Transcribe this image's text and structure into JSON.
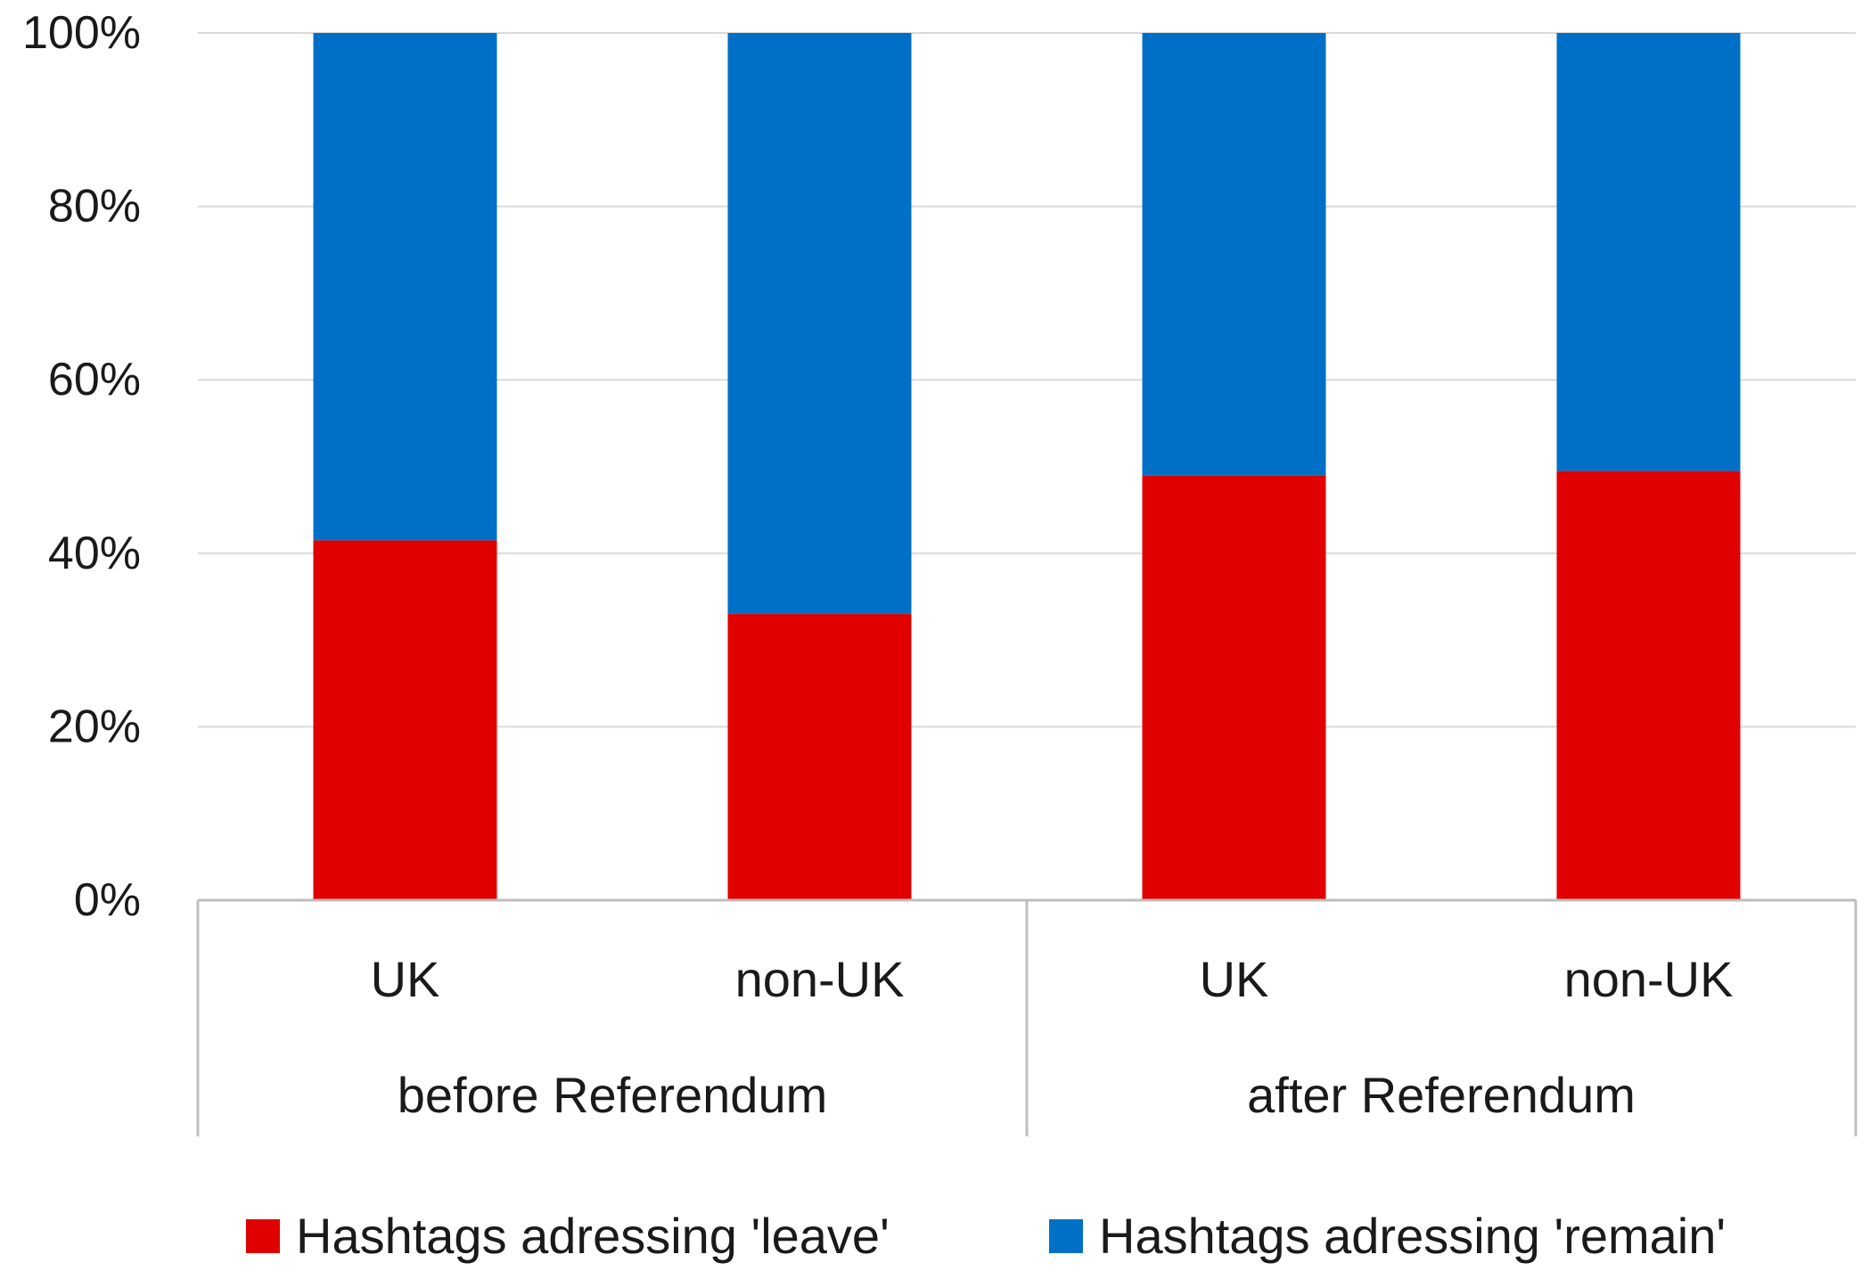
{
  "chart_data": {
    "type": "bar",
    "stacked": true,
    "percent_stacked": true,
    "groups": [
      {
        "label": "before Referendum",
        "categories": [
          "UK",
          "non-UK"
        ]
      },
      {
        "label": "after Referendum",
        "categories": [
          "UK",
          "non-UK"
        ]
      }
    ],
    "categories": [
      "UK",
      "non-UK",
      "UK",
      "non-UK"
    ],
    "series": [
      {
        "name": "Hashtags adressing 'leave'",
        "color": "#e00000",
        "values": [
          41.5,
          33,
          49,
          49.5
        ]
      },
      {
        "name": "Hashtags adressing 'remain'",
        "color": "#0070c6",
        "values": [
          58.5,
          67,
          51,
          50.5
        ]
      }
    ],
    "yticks": [
      "0%",
      "20%",
      "40%",
      "60%",
      "80%",
      "100%"
    ],
    "ylim": [
      0,
      100
    ],
    "grid": true,
    "legend": "bottom"
  }
}
